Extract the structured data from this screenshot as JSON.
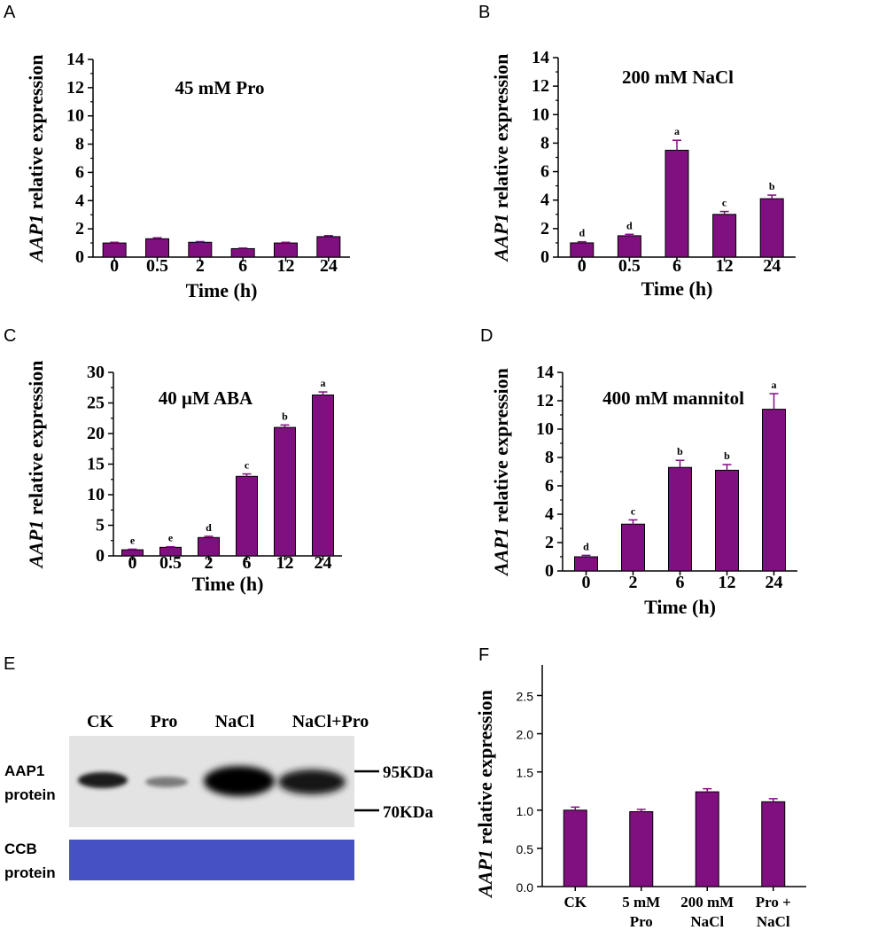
{
  "colors": {
    "bar": "#800f80",
    "error": "#800f80",
    "blot_bg": "#e3e3e3",
    "band": "#0d0d0d",
    "ccb": "#4a57c7"
  },
  "panels": {
    "A": {
      "label": "A"
    },
    "B": {
      "label": "B"
    },
    "C": {
      "label": "C"
    },
    "D": {
      "label": "D"
    },
    "E": {
      "label": "E"
    },
    "F": {
      "label": "F"
    }
  },
  "chart_data": [
    {
      "id": "A",
      "type": "bar",
      "title": "45 mM Pro",
      "xlabel": "Time (h)",
      "ylabel_italic": "AAP1",
      "ylabel_rest": " relative expression",
      "ylim": [
        0,
        14
      ],
      "yticks": [
        0,
        2,
        4,
        6,
        8,
        10,
        12,
        14
      ],
      "categories": [
        "0",
        "0.5",
        "2",
        "6",
        "12",
        "24"
      ],
      "values": [
        1.0,
        1.3,
        1.05,
        0.6,
        1.0,
        1.45
      ],
      "errors": [
        0.05,
        0.07,
        0.05,
        0.04,
        0.05,
        0.07
      ],
      "letters": [
        "",
        "",
        "",
        "",
        "",
        ""
      ]
    },
    {
      "id": "B",
      "type": "bar",
      "title": "200 mM NaCl",
      "xlabel": "Time (h)",
      "ylabel_italic": "AAP1",
      "ylabel_rest": " relative expression",
      "ylim": [
        0,
        14
      ],
      "yticks": [
        0,
        2,
        4,
        6,
        8,
        10,
        12,
        14
      ],
      "categories": [
        "0",
        "0.5",
        "6",
        "12",
        "24"
      ],
      "values": [
        1.0,
        1.5,
        7.5,
        3.0,
        4.1
      ],
      "errors": [
        0.08,
        0.1,
        0.7,
        0.2,
        0.25
      ],
      "letters": [
        "d",
        "d",
        "a",
        "c",
        "b"
      ]
    },
    {
      "id": "C",
      "type": "bar",
      "title": "40 μM ABA",
      "xlabel": "Time (h)",
      "ylabel_italic": "AAP1",
      "ylabel_rest": " relative expression",
      "ylim": [
        0,
        30
      ],
      "yticks": [
        0,
        5,
        10,
        15,
        20,
        25,
        30
      ],
      "categories": [
        "0",
        "0.5",
        "2",
        "6",
        "12",
        "24"
      ],
      "values": [
        1.0,
        1.4,
        3.0,
        13.0,
        21.0,
        26.3
      ],
      "errors": [
        0.1,
        0.1,
        0.2,
        0.4,
        0.4,
        0.5
      ],
      "letters": [
        "e",
        "e",
        "d",
        "c",
        "b",
        "a"
      ]
    },
    {
      "id": "D",
      "type": "bar",
      "title": "400 mM mannitol",
      "xlabel": "Time (h)",
      "ylabel_italic": "AAP1",
      "ylabel_rest": " relative expression",
      "ylim": [
        0,
        14
      ],
      "yticks": [
        0,
        2,
        4,
        6,
        8,
        10,
        12,
        14
      ],
      "categories": [
        "0",
        "2",
        "6",
        "12",
        "24"
      ],
      "values": [
        1.0,
        3.3,
        7.3,
        7.1,
        11.4
      ],
      "errors": [
        0.1,
        0.3,
        0.5,
        0.4,
        1.1
      ],
      "letters": [
        "d",
        "c",
        "b",
        "b",
        "a"
      ]
    },
    {
      "id": "F",
      "type": "bar",
      "title": "",
      "xlabel": "",
      "ylabel_italic": "AAP1",
      "ylabel_rest": " relative expression",
      "ylim": [
        0,
        2.9
      ],
      "yticks": [
        0.0,
        0.5,
        1.0,
        1.5,
        2.0,
        2.5
      ],
      "ytick_labels": [
        "0.0",
        "0.5",
        "1.0",
        "1.5",
        "2.0",
        "2.5"
      ],
      "categories": [
        [
          "CK"
        ],
        [
          "5 mM",
          "Pro"
        ],
        [
          "200 mM",
          "NaCl"
        ],
        [
          "Pro +",
          "NaCl"
        ]
      ],
      "values": [
        1.0,
        0.98,
        1.24,
        1.11
      ],
      "errors": [
        0.04,
        0.03,
        0.04,
        0.04
      ],
      "letters": [
        "",
        "",
        "",
        ""
      ]
    }
  ],
  "western": {
    "lanes": [
      "CK",
      "Pro",
      "NaCl",
      "NaCl+Pro"
    ],
    "row1_label": [
      "AAP1",
      "protein"
    ],
    "row2_label": [
      "CCB",
      "protein"
    ],
    "markers": [
      "95KDa",
      "70KDa"
    ]
  }
}
